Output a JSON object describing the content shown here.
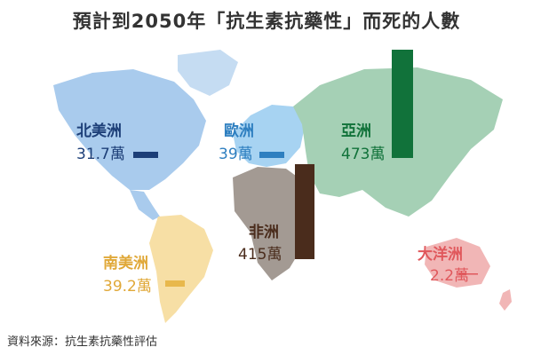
{
  "title": "預計到2050年「抗生素抗藥性」而死的人數",
  "source": "資料來源：抗生素抗藥性評估",
  "colors": {
    "north_america": "#1d3f78",
    "europe": "#2e7fc0",
    "asia": "#11723a",
    "africa": "#4a2c1c",
    "south_america": "#e8b84c",
    "oceania": "#e0585c"
  },
  "chart_data": {
    "type": "bar",
    "title": "預計到2050年「抗生素抗藥性」而死的人數",
    "unit": "萬",
    "categories": [
      "北美洲",
      "歐洲",
      "亞洲",
      "非洲",
      "南美洲",
      "大洋洲"
    ],
    "values": [
      31.7,
      39,
      473,
      415,
      39.2,
      2.2
    ],
    "value_labels": [
      "31.7萬",
      "39萬",
      "473萬",
      "415萬",
      "39.2萬",
      "2.2萬"
    ],
    "ylim": [
      0,
      473
    ]
  }
}
